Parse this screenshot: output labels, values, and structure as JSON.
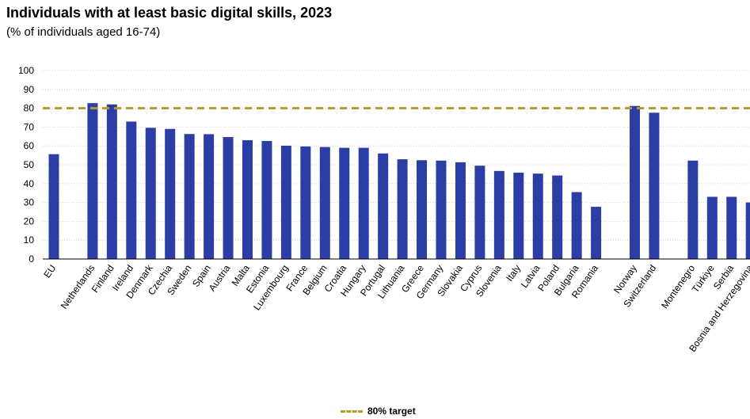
{
  "chart_data": {
    "type": "bar",
    "title": "Individuals with at least basic digital skills, 2023",
    "subtitle": "(% of individuals aged 16-74)",
    "xlabel": "",
    "ylabel": "",
    "ylim": [
      0,
      100
    ],
    "yticks": [
      0,
      10,
      20,
      30,
      40,
      50,
      60,
      70,
      80,
      90,
      100
    ],
    "grid": true,
    "categories": [
      "EU",
      "Netherlands",
      "Finland",
      "Ireland",
      "Denmark",
      "Czechia",
      "Sweden",
      "Spain",
      "Austria",
      "Malta",
      "Estonia",
      "Luxembourg",
      "France",
      "Belgium",
      "Croatia",
      "Hungary",
      "Portugal",
      "Lithuania",
      "Greece",
      "Germany",
      "Slovakia",
      "Cyprus",
      "Slovenia",
      "Italy",
      "Latvia",
      "Poland",
      "Bulgaria",
      "Romania",
      "Norway",
      "Switzerland",
      "Montenegro",
      "Türkiye",
      "Serbia",
      "Bosnia and Herzegovina"
    ],
    "values": [
      55.6,
      82.7,
      82.0,
      72.9,
      69.6,
      69.0,
      66.3,
      66.2,
      64.7,
      63.0,
      62.6,
      60.1,
      59.7,
      59.4,
      59.0,
      59.0,
      56.0,
      52.9,
      52.4,
      52.2,
      51.3,
      49.5,
      46.7,
      45.8,
      45.3,
      44.3,
      35.5,
      27.7,
      81.2,
      77.6,
      52.2,
      33.0,
      33.0,
      30.0
    ],
    "bar_color": "#2b3ea5",
    "reference_line": {
      "value": 80,
      "label": "80% target",
      "color": "#b59a2e",
      "style": "dashed"
    },
    "legend": {
      "position": "bottom",
      "entries": [
        "80% target"
      ]
    }
  }
}
